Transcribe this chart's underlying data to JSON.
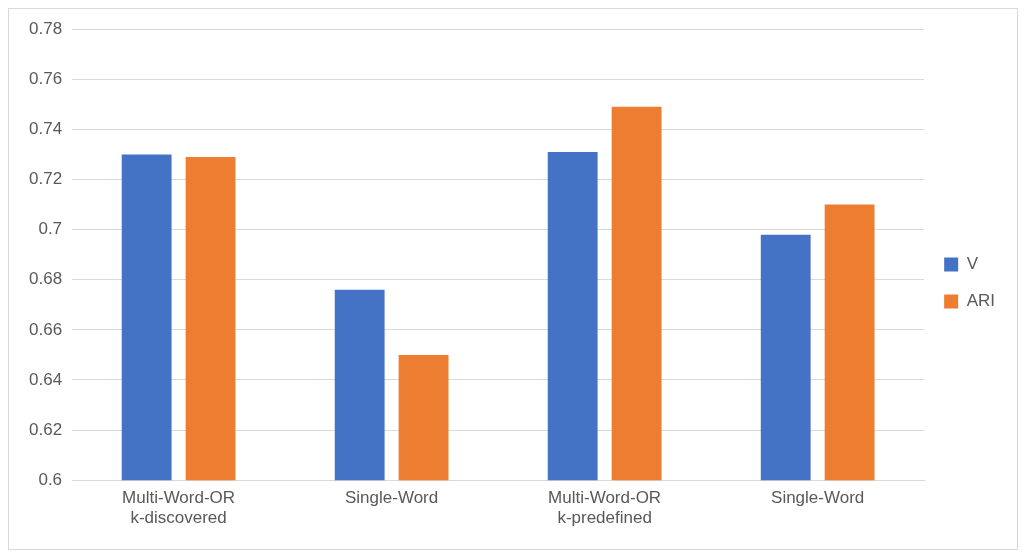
{
  "chart_data": {
    "type": "bar",
    "categories": [
      "Multi-Word-OR\nk-discovered",
      "Single-Word",
      "Multi-Word-OR\nk-predefined",
      "Single-Word"
    ],
    "series": [
      {
        "name": "V",
        "color": "#4472c4",
        "values": [
          0.73,
          0.676,
          0.731,
          0.698
        ]
      },
      {
        "name": "ARI",
        "color": "#ed7d31",
        "values": [
          0.729,
          0.65,
          0.749,
          0.71
        ]
      }
    ],
    "ylim": [
      0.6,
      0.78
    ],
    "yticks": [
      0.6,
      0.62,
      0.64,
      0.66,
      0.68,
      0.7,
      0.72,
      0.74,
      0.76,
      0.78
    ],
    "grid": "y",
    "legend": "right"
  }
}
